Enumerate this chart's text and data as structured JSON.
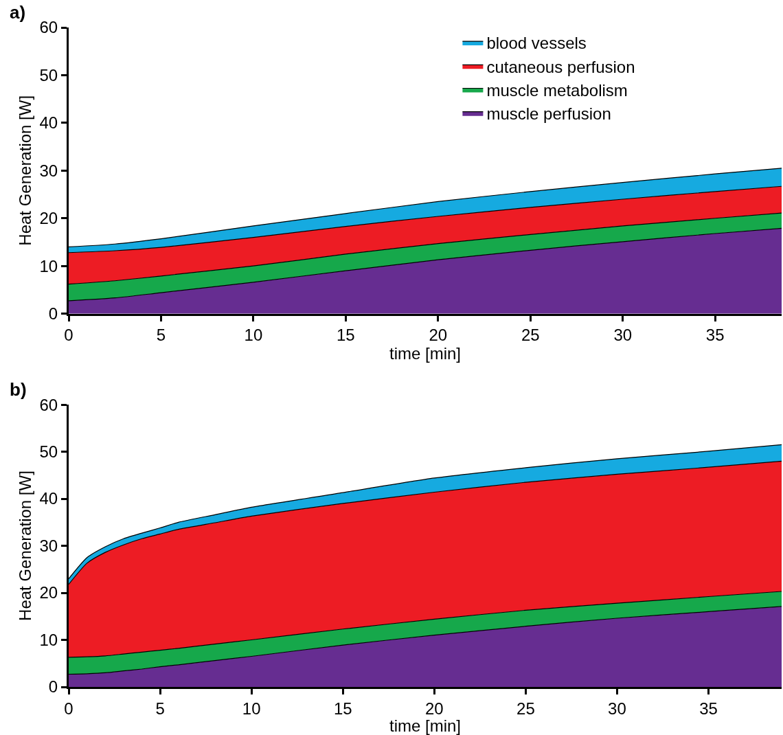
{
  "chart_data": [
    {
      "type": "area",
      "title": "a)",
      "xlabel": "time [min]",
      "ylabel": "Heat Generation [W]",
      "stacked": true,
      "legend": "top right",
      "x": [
        0,
        2.5,
        5,
        10,
        15,
        20,
        25,
        30,
        35,
        38.6
      ],
      "xlim": [
        0,
        38.6
      ],
      "xticks": [
        0,
        5,
        10,
        15,
        20,
        25,
        30,
        35
      ],
      "ylim": [
        0,
        60
      ],
      "yticks": [
        0,
        10,
        20,
        30,
        40,
        50,
        60
      ],
      "series": [
        {
          "name": "muscle perfusion",
          "color": "#662d91",
          "values": [
            2.7,
            3.3,
            4.4,
            6.6,
            9,
            11.3,
            13.3,
            15.1,
            16.8,
            17.9
          ]
        },
        {
          "name": "muscle metabolism",
          "color": "#16a84b",
          "values": [
            3.5,
            3.6,
            3.5,
            3.4,
            3.5,
            3.4,
            3.3,
            3.3,
            3.2,
            3.2
          ]
        },
        {
          "name": "cutaneous perfusion",
          "color": "#ed1c24",
          "values": [
            6.6,
            6.3,
            6.0,
            6.0,
            5.8,
            5.7,
            5.7,
            5.6,
            5.6,
            5.6
          ]
        },
        {
          "name": "blood vessels",
          "color": "#16aae0",
          "values": [
            1.2,
            1.4,
            1.8,
            2.4,
            2.7,
            3.1,
            3.3,
            3.5,
            3.7,
            3.8
          ]
        }
      ]
    },
    {
      "type": "area",
      "title": "b)",
      "xlabel": "time [min]",
      "ylabel": "Heat Generation [W]",
      "stacked": true,
      "x": [
        0,
        1,
        2,
        3,
        4,
        5,
        6,
        8,
        10,
        15,
        20,
        25,
        30,
        35,
        39
      ],
      "xlim": [
        0,
        39
      ],
      "xticks": [
        0,
        5,
        10,
        15,
        20,
        25,
        30,
        35
      ],
      "ylim": [
        0,
        60
      ],
      "yticks": [
        0,
        10,
        20,
        30,
        40,
        50,
        60
      ],
      "series": [
        {
          "color": "#662d91",
          "values": [
            2.7,
            2.8,
            3.0,
            3.4,
            3.8,
            4.3,
            4.7,
            5.6,
            6.5,
            8.9,
            11,
            12.9,
            14.6,
            16,
            17.1
          ]
        },
        {
          "color": "#16a84b",
          "values": [
            3.6,
            3.6,
            3.6,
            3.6,
            3.6,
            3.5,
            3.5,
            3.5,
            3.5,
            3.4,
            3.4,
            3.4,
            3.2,
            3.2,
            3.2
          ]
        },
        {
          "color": "#ed1c24",
          "values": [
            15.5,
            19.9,
            22.0,
            23.2,
            24.1,
            24.7,
            25.3,
            25.8,
            26.3,
            26.7,
            27.0,
            27.2,
            27.4,
            27.5,
            27.7
          ]
        },
        {
          "color": "#16aae0",
          "values": [
            1.2,
            1.2,
            1.2,
            1.3,
            1.2,
            1.3,
            1.5,
            1.7,
            1.9,
            2.3,
            3.0,
            3.1,
            3.3,
            3.4,
            3.5
          ]
        }
      ]
    }
  ]
}
